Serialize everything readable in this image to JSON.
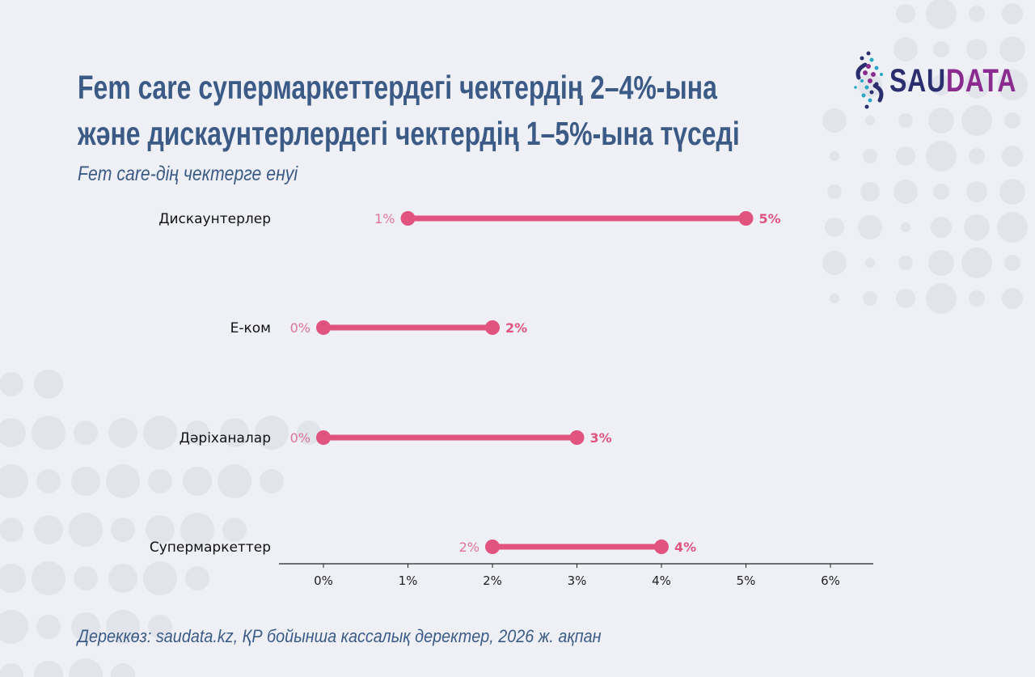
{
  "header": {
    "title_line1": "Fem care супермаркеттердегі чектердің 2–4%-ына",
    "title_line2": "және дискаунтерлердегі чектердің 1–5%-ына түседі",
    "subtitle": "Fem care-дің чектерге енуі"
  },
  "logo": {
    "part1": "SAU",
    "part2": "DATA"
  },
  "footer": {
    "source": "Дереккөз: saudata.kz, ҚР бойынша кассалық деректер, 2026 ж. ақпан"
  },
  "colors": {
    "accent": "#e0547f",
    "low_label": "#e07497",
    "text": "#3b5b86",
    "axis": "#222222"
  },
  "chart_data": {
    "type": "dumbbell",
    "title": "Fem care-дің чектерге енуі",
    "categories": [
      "Дискаунтерлер",
      "E-ком",
      "Дәріханалар",
      "Супермаркеттер"
    ],
    "series": [
      {
        "values_low": [
          1,
          0,
          0,
          2
        ],
        "values_high": [
          5,
          2,
          3,
          4
        ]
      }
    ],
    "low_labels": [
      "1%",
      "0%",
      "0%",
      "2%"
    ],
    "high_labels": [
      "5%",
      "2%",
      "3%",
      "4%"
    ],
    "xlim": [
      0,
      6
    ],
    "xticks": [
      "0%",
      "1%",
      "2%",
      "3%",
      "4%",
      "5%",
      "6%"
    ],
    "grid": false
  }
}
